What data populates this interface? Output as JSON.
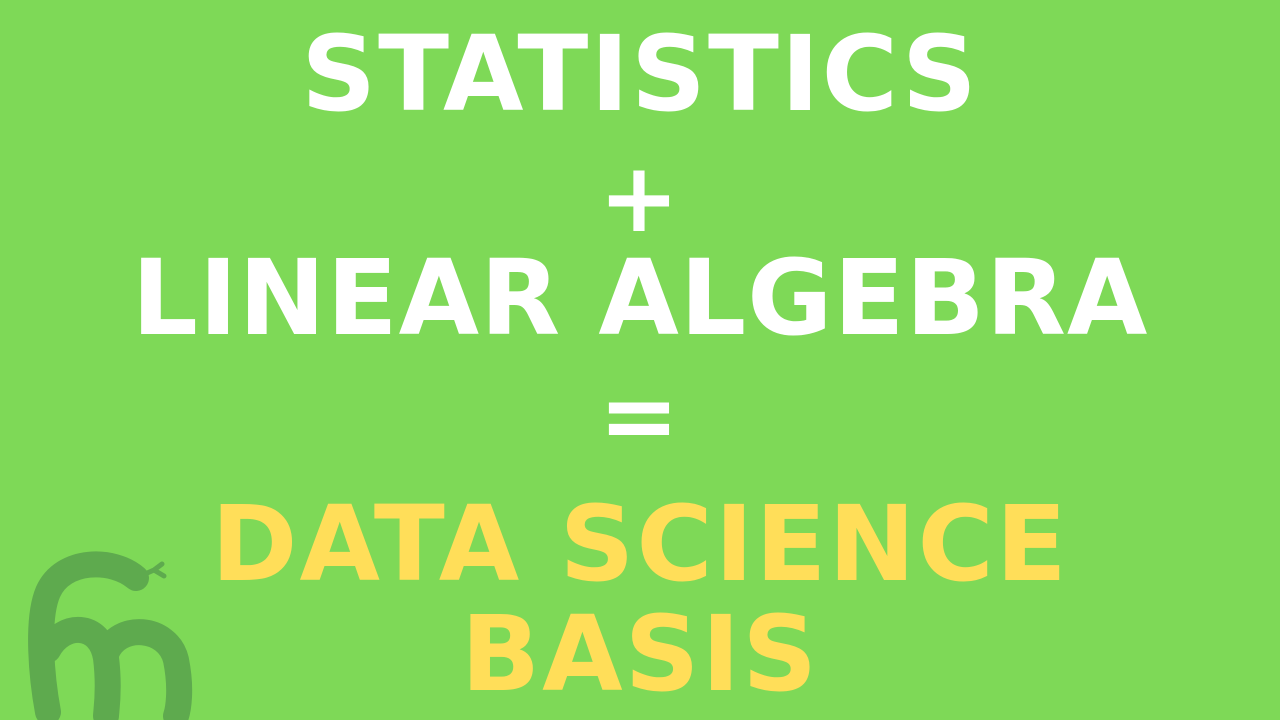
{
  "colors": {
    "background": "#7ed957",
    "white_text": "#ffffff",
    "accent_text": "#ffde59",
    "logo": "#5eaa4e"
  },
  "headline": {
    "line1": "STATISTICS",
    "plus": "+",
    "line2": "LINEAR ALGEBRA",
    "equals": "=",
    "line3": "DATA SCIENCE",
    "line4": "BASIS"
  },
  "logo": {
    "icon": "snake-logo-icon"
  }
}
